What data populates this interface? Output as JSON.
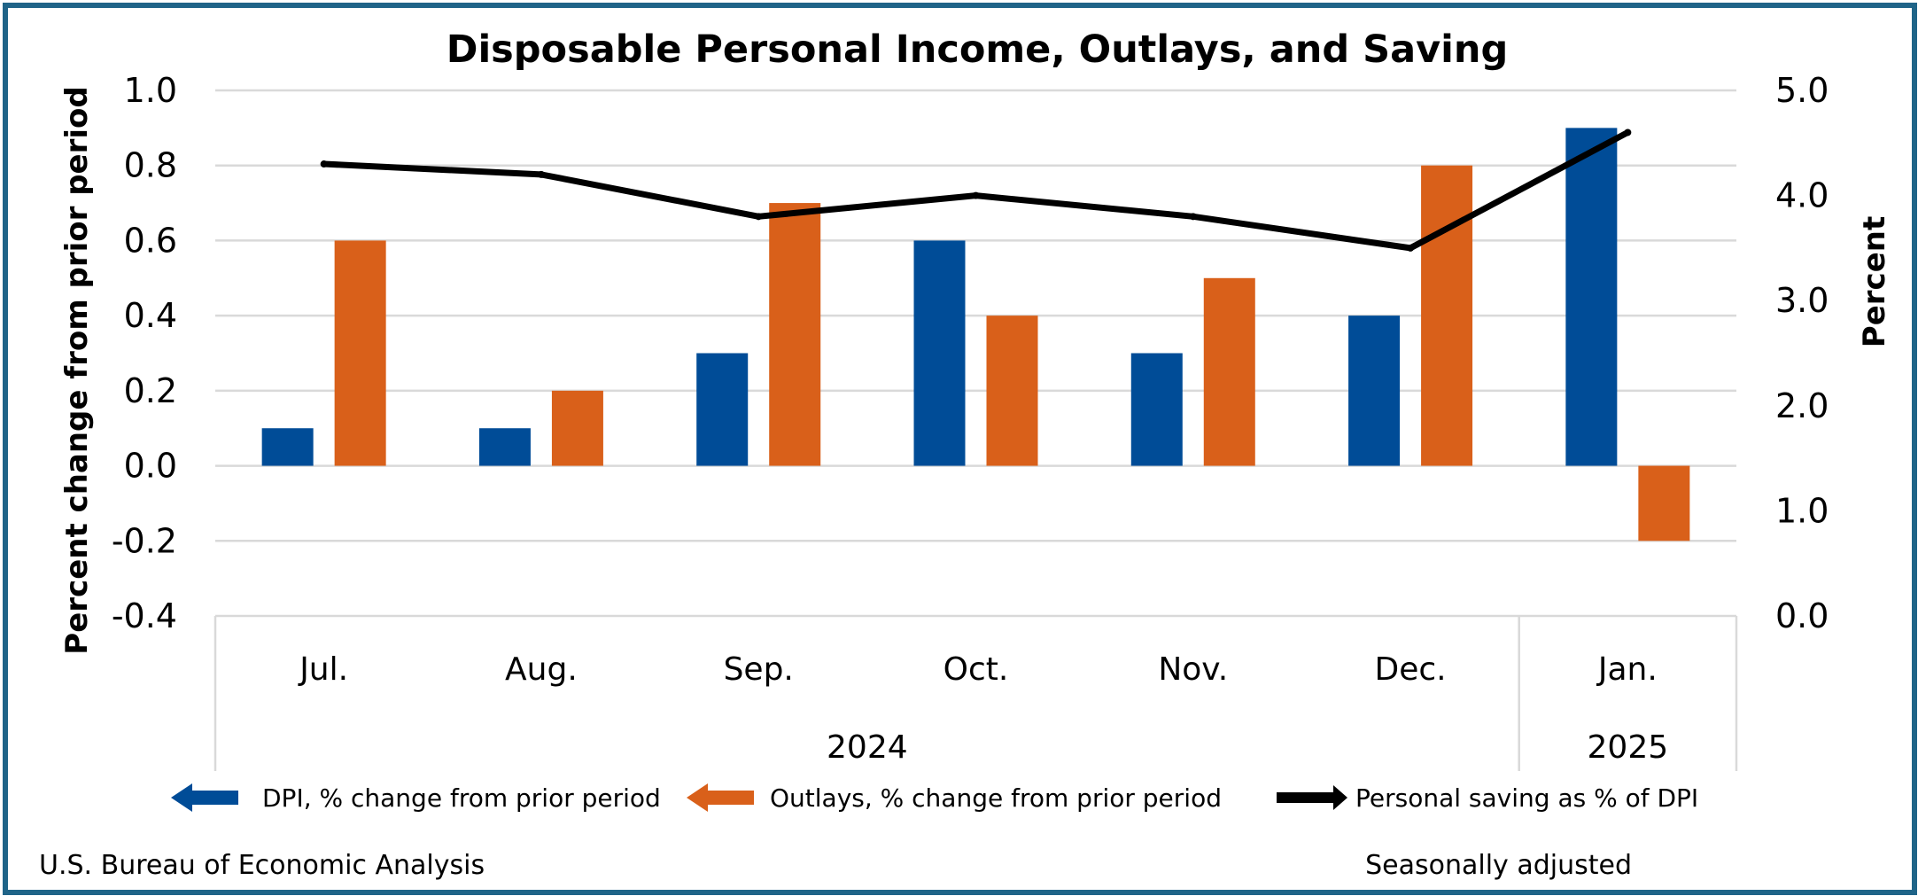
{
  "chart_data": {
    "type": "bar",
    "title": "Disposable Personal Income, Outlays, and Saving",
    "categories": [
      "Jul.",
      "Aug.",
      "Sep.",
      "Oct.",
      "Nov.",
      "Dec.",
      "Jan."
    ],
    "year_groups": [
      {
        "label": "2024",
        "span": 6
      },
      {
        "label": "2025",
        "span": 1
      }
    ],
    "series": [
      {
        "name": "DPI, % change from prior period",
        "type": "bar",
        "axis": "left",
        "color": "#004c97",
        "values": [
          0.1,
          0.1,
          0.3,
          0.6,
          0.3,
          0.4,
          0.9
        ]
      },
      {
        "name": "Outlays, % change from prior period",
        "type": "bar",
        "axis": "left",
        "color": "#d9601a",
        "values": [
          0.6,
          0.2,
          0.7,
          0.4,
          0.5,
          0.8,
          -0.2
        ]
      },
      {
        "name": "Personal saving as % of DPI",
        "type": "line",
        "axis": "right",
        "color": "#000000",
        "values": [
          4.3,
          4.2,
          3.8,
          4.0,
          3.8,
          3.5,
          4.6
        ]
      }
    ],
    "ylabel": "Percent change from prior period",
    "y2label": "Percent",
    "ylim": [
      -0.4,
      1.0
    ],
    "y_ticks": [
      "1.0",
      "0.8",
      "0.6",
      "0.4",
      "0.2",
      "0.0",
      "-0.2",
      "-0.4"
    ],
    "y2lim": [
      0.0,
      5.0
    ],
    "y2_ticks": [
      "5.0",
      "4.0",
      "3.0",
      "2.0",
      "1.0",
      "0.0"
    ],
    "grid": true,
    "legend_position": "bottom"
  },
  "footer": {
    "source": "U.S. Bureau of Economic Analysis",
    "note": "Seasonally adjusted"
  }
}
